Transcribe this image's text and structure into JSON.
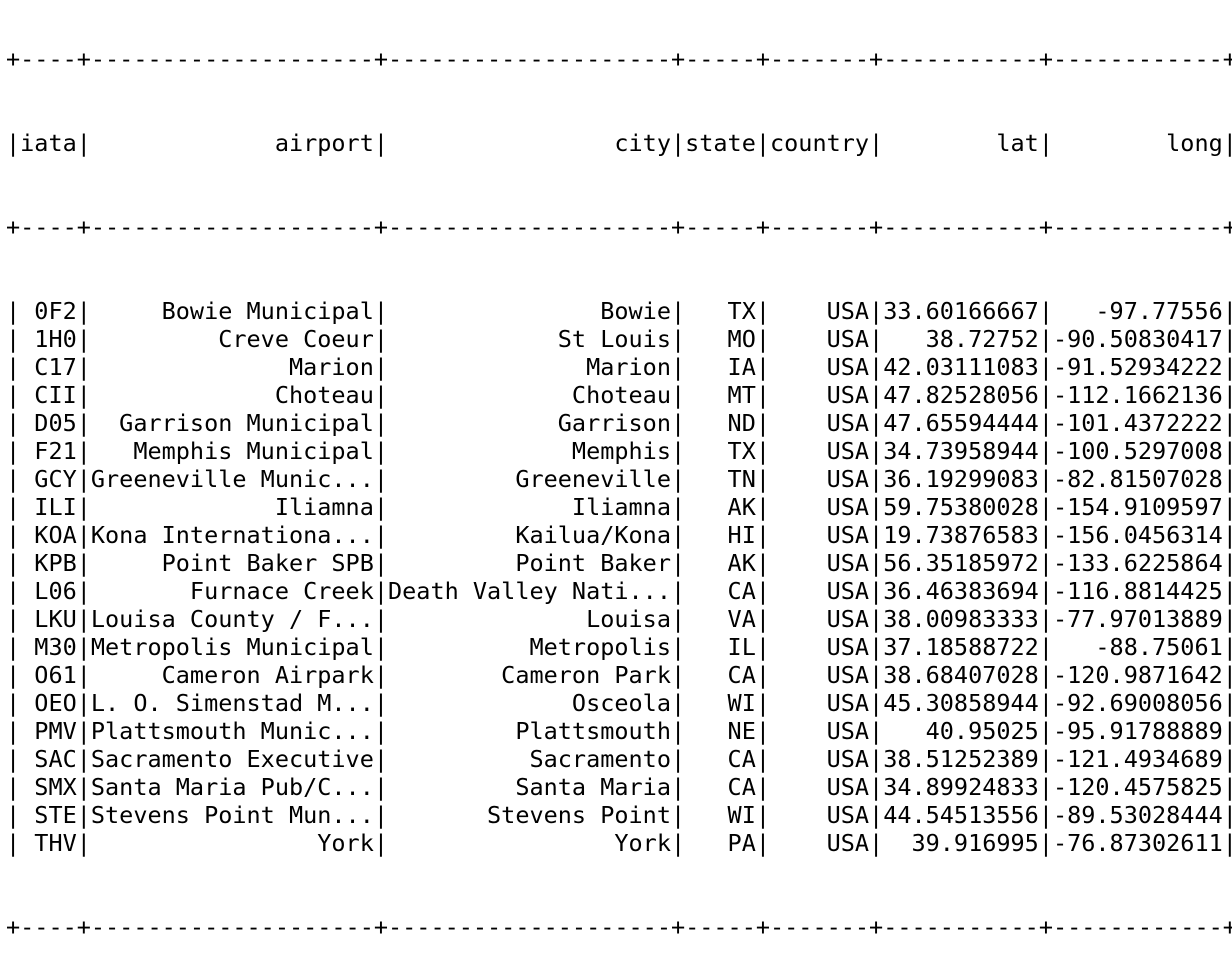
{
  "table": {
    "columns": [
      {
        "key": "iata",
        "label": "iata",
        "width": 4,
        "align": "left"
      },
      {
        "key": "airport",
        "label": "airport",
        "width": 20,
        "align": "right"
      },
      {
        "key": "city",
        "label": "city",
        "width": 20,
        "align": "right"
      },
      {
        "key": "state",
        "label": "state",
        "width": 5,
        "align": "right"
      },
      {
        "key": "country",
        "label": "country",
        "width": 7,
        "align": "right"
      },
      {
        "key": "lat",
        "label": "lat",
        "width": 11,
        "align": "right"
      },
      {
        "key": "long",
        "label": "long",
        "width": 12,
        "align": "right"
      }
    ],
    "rows": [
      {
        "iata": "0F2",
        "airport": "Bowie Municipal",
        "city": "Bowie",
        "state": "TX",
        "country": "USA",
        "lat": "33.60166667",
        "long": "-97.77556"
      },
      {
        "iata": "1H0",
        "airport": "Creve Coeur",
        "city": "St Louis",
        "state": "MO",
        "country": "USA",
        "lat": "38.72752",
        "long": "-90.50830417"
      },
      {
        "iata": "C17",
        "airport": "Marion",
        "city": "Marion",
        "state": "IA",
        "country": "USA",
        "lat": "42.03111083",
        "long": "-91.52934222"
      },
      {
        "iata": "CII",
        "airport": "Choteau",
        "city": "Choteau",
        "state": "MT",
        "country": "USA",
        "lat": "47.82528056",
        "long": "-112.1662136"
      },
      {
        "iata": "D05",
        "airport": "Garrison Municipal",
        "city": "Garrison",
        "state": "ND",
        "country": "USA",
        "lat": "47.65594444",
        "long": "-101.4372222"
      },
      {
        "iata": "F21",
        "airport": "Memphis Municipal",
        "city": "Memphis",
        "state": "TX",
        "country": "USA",
        "lat": "34.73958944",
        "long": "-100.5297008"
      },
      {
        "iata": "GCY",
        "airport": "Greeneville Munic...",
        "city": "Greeneville",
        "state": "TN",
        "country": "USA",
        "lat": "36.19299083",
        "long": "-82.81507028"
      },
      {
        "iata": "ILI",
        "airport": "Iliamna",
        "city": "Iliamna",
        "state": "AK",
        "country": "USA",
        "lat": "59.75380028",
        "long": "-154.9109597"
      },
      {
        "iata": "KOA",
        "airport": "Kona Internationa...",
        "city": "Kailua/Kona",
        "state": "HI",
        "country": "USA",
        "lat": "19.73876583",
        "long": "-156.0456314"
      },
      {
        "iata": "KPB",
        "airport": "Point Baker SPB",
        "city": "Point Baker",
        "state": "AK",
        "country": "USA",
        "lat": "56.35185972",
        "long": "-133.6225864"
      },
      {
        "iata": "L06",
        "airport": "Furnace Creek",
        "city": "Death Valley Nati...",
        "state": "CA",
        "country": "USA",
        "lat": "36.46383694",
        "long": "-116.8814425"
      },
      {
        "iata": "LKU",
        "airport": "Louisa County / F...",
        "city": "Louisa",
        "state": "VA",
        "country": "USA",
        "lat": "38.00983333",
        "long": "-77.97013889"
      },
      {
        "iata": "M30",
        "airport": "Metropolis Municipal",
        "city": "Metropolis",
        "state": "IL",
        "country": "USA",
        "lat": "37.18588722",
        "long": "-88.75061"
      },
      {
        "iata": "O61",
        "airport": "Cameron Airpark",
        "city": "Cameron Park",
        "state": "CA",
        "country": "USA",
        "lat": "38.68407028",
        "long": "-120.9871642"
      },
      {
        "iata": "OEO",
        "airport": "L. O. Simenstad M...",
        "city": "Osceola",
        "state": "WI",
        "country": "USA",
        "lat": "45.30858944",
        "long": "-92.69008056"
      },
      {
        "iata": "PMV",
        "airport": "Plattsmouth Munic...",
        "city": "Plattsmouth",
        "state": "NE",
        "country": "USA",
        "lat": "40.95025",
        "long": "-95.91788889"
      },
      {
        "iata": "SAC",
        "airport": "Sacramento Executive",
        "city": "Sacramento",
        "state": "CA",
        "country": "USA",
        "lat": "38.51252389",
        "long": "-121.4934689"
      },
      {
        "iata": "SMX",
        "airport": "Santa Maria Pub/C...",
        "city": "Santa Maria",
        "state": "CA",
        "country": "USA",
        "lat": "34.89924833",
        "long": "-120.4575825"
      },
      {
        "iata": "STE",
        "airport": "Stevens Point Mun...",
        "city": "Stevens Point",
        "state": "WI",
        "country": "USA",
        "lat": "44.54513556",
        "long": "-89.53028444"
      },
      {
        "iata": "THV",
        "airport": "York",
        "city": "York",
        "state": "PA",
        "country": "USA",
        "lat": "39.916995",
        "long": "-76.87302611"
      }
    ]
  }
}
